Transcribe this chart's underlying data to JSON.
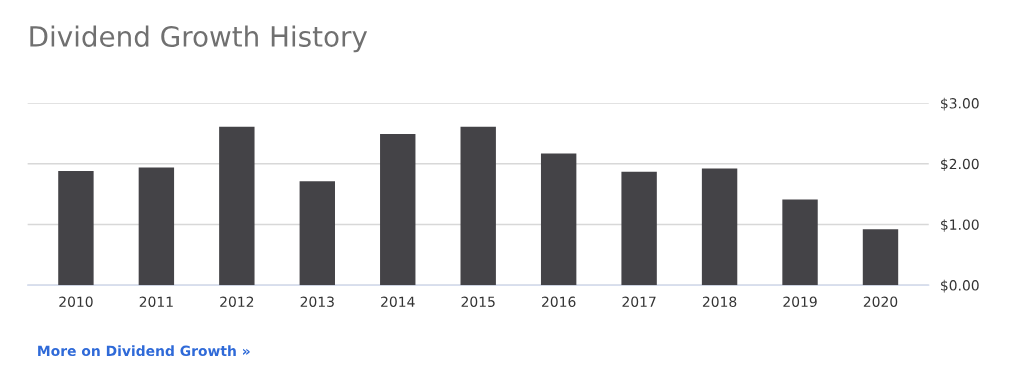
{
  "chart_data": {
    "type": "bar",
    "title": "Dividend Growth History",
    "categories": [
      "2010",
      "2011",
      "2012",
      "2013",
      "2014",
      "2015",
      "2016",
      "2017",
      "2018",
      "2019",
      "2020"
    ],
    "values": [
      1.88,
      1.94,
      2.61,
      1.71,
      2.49,
      2.61,
      2.17,
      1.87,
      1.92,
      1.41,
      0.92
    ],
    "color": "#444347",
    "ylim": [
      0,
      3
    ],
    "yticks": [
      {
        "value": 0,
        "label": "$0.00"
      },
      {
        "value": 1,
        "label": "$1.00"
      },
      {
        "value": 2,
        "label": "$2.00"
      },
      {
        "value": 3,
        "label": "$3.00"
      }
    ],
    "grid": "y",
    "annotations": [
      "More on Dividend Growth »"
    ]
  }
}
